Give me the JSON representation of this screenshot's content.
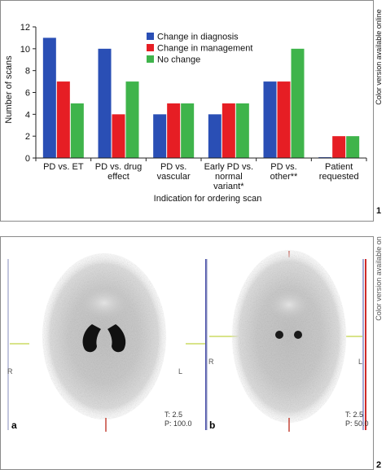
{
  "side_note": "Color version available online",
  "figure_numbers": [
    "1",
    "2"
  ],
  "chart_data": {
    "type": "bar",
    "categories": [
      [
        "PD vs. ET"
      ],
      [
        "PD vs. drug",
        "effect"
      ],
      [
        "PD vs.",
        "vascular"
      ],
      [
        "Early PD vs.",
        "normal",
        "variant*"
      ],
      [
        "PD vs.",
        "other**"
      ],
      [
        "Patient",
        "requested"
      ]
    ],
    "series": [
      {
        "name": "Change in diagnosis",
        "color": "#2a4fb5",
        "values": [
          11,
          10,
          4,
          4,
          7,
          0
        ]
      },
      {
        "name": "Change in management",
        "color": "#e61e24",
        "values": [
          7,
          4,
          5,
          5,
          7,
          2
        ]
      },
      {
        "name": "No change",
        "color": "#3fb44b",
        "values": [
          5,
          7,
          5,
          5,
          10,
          2
        ]
      }
    ],
    "xlabel": "Indication for ordering scan",
    "ylabel": "Number of scans",
    "ylim": [
      0,
      12
    ],
    "yticks": [
      "0",
      "2",
      "4",
      "6",
      "8",
      "10",
      "12"
    ],
    "grid": false,
    "legend": "top-right"
  },
  "scans": {
    "panels": [
      {
        "letter": "a",
        "left_marker": "R",
        "right_marker": "L",
        "readout": [
          "T: 2.5",
          "P: 100.0"
        ],
        "uptake": "normal"
      },
      {
        "letter": "b",
        "left_marker": "R",
        "right_marker": "L",
        "readout": [
          "T: 2.5",
          "P: 50.0"
        ],
        "uptake": "reduced"
      }
    ]
  }
}
